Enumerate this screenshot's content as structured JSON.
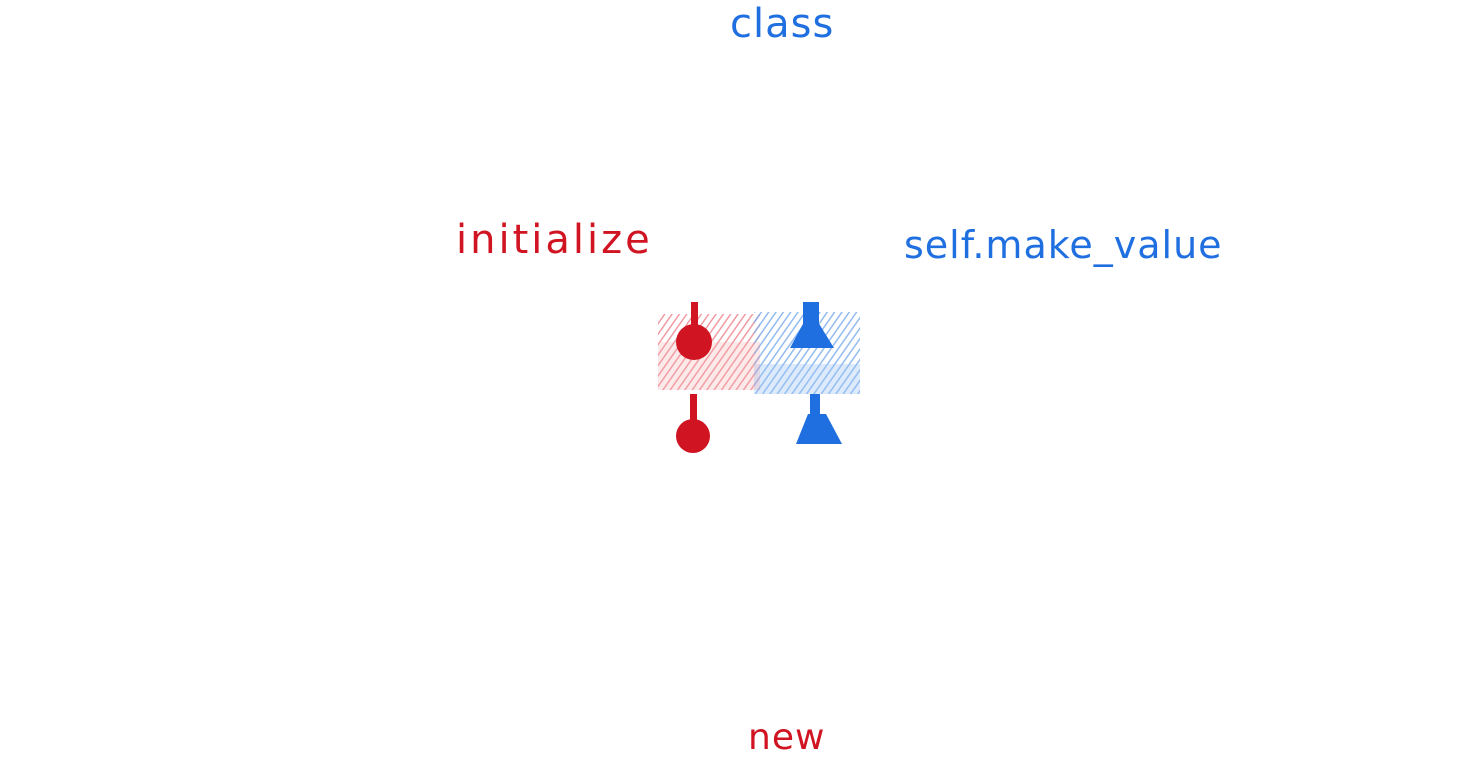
{
  "labels": {
    "class": "class",
    "initialize": "initialize",
    "make_value": "self.make_value",
    "new": "new"
  },
  "colors": {
    "blue": "#1f6fe0",
    "light_blue": "#7fb0ee",
    "red": "#d01422",
    "light_red": "#ee8b92"
  },
  "icons": {
    "top_left": "red-round-peg-icon",
    "top_right": "blue-triangle-peg-icon",
    "bottom_left": "red-round-peg-icon",
    "bottom_right": "blue-triangle-peg-icon"
  }
}
